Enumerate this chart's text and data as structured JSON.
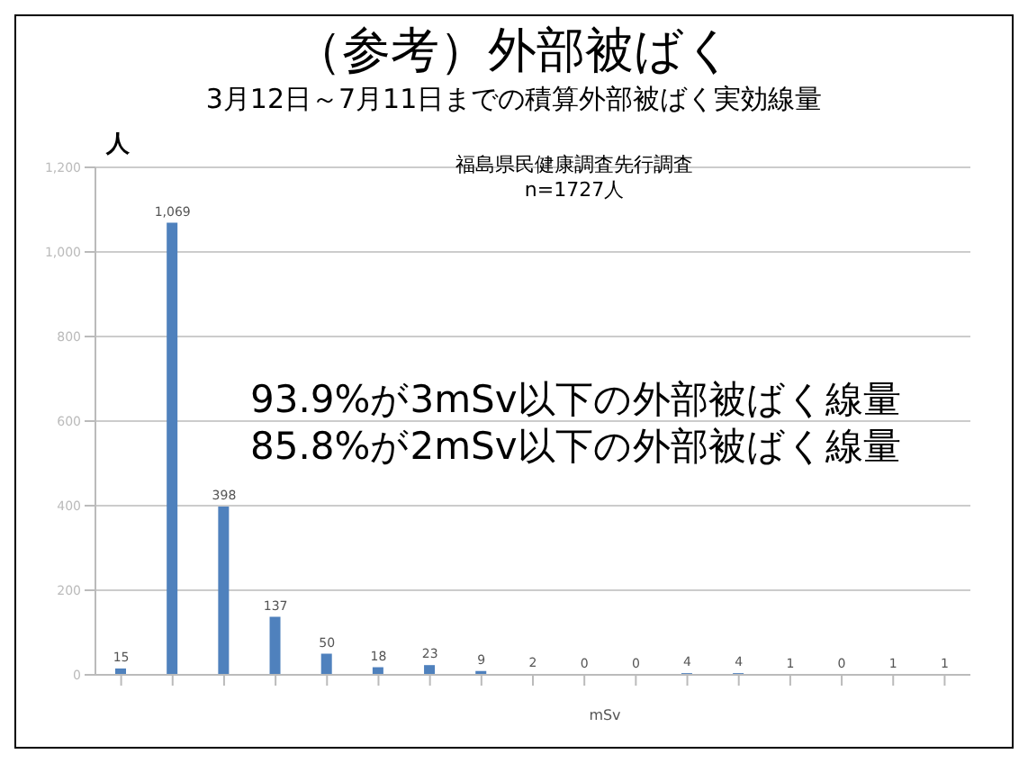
{
  "chart_data": {
    "type": "bar",
    "title": "（参考）外部被ばく",
    "subtitle": "3月12日～7月11日までの積算外部被ばく実効線量",
    "ylabel": "人",
    "xlabel": "mSv",
    "annotations": [
      "福島県民健康調査先行調査",
      "n=1727人",
      "93.9%が3mSv以下の外部被ばく線量",
      "85.8%が2mSv以下の外部被ばく線量"
    ],
    "categories": [
      null,
      null,
      null,
      null,
      null,
      null,
      null,
      null,
      null,
      null,
      null,
      null,
      null,
      null,
      null,
      null,
      null
    ],
    "values": [
      15,
      1069,
      398,
      137,
      50,
      18,
      23,
      9,
      2,
      0,
      0,
      4,
      4,
      1,
      0,
      1,
      1
    ],
    "value_labels": [
      "15",
      "1,069",
      "398",
      "137",
      "50",
      "18",
      "23",
      "9",
      "2",
      "0",
      "0",
      "4",
      "4",
      "1",
      "0",
      "1",
      "1"
    ],
    "color": "#4f81bd",
    "ylim": [
      0,
      1200
    ],
    "yticks": [
      0,
      200,
      400,
      600,
      800,
      {
        "value": 1000,
        "label": "1,000"
      },
      {
        "value": 1200,
        "label": "1,200"
      }
    ],
    "grid": "y"
  }
}
